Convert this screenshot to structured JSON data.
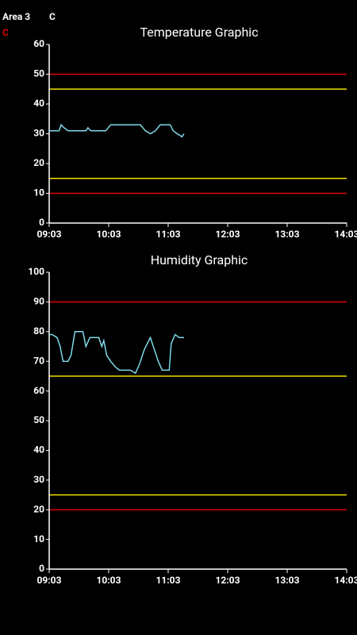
{
  "header": {
    "area": "Area 3",
    "unit": "C",
    "status": "C"
  },
  "chart_data": [
    {
      "type": "line",
      "title": "Temperature Graphic",
      "x": [
        "09:03",
        "09:13",
        "09:15",
        "09:18",
        "09:22",
        "09:40",
        "09:42",
        "09:45",
        "10:00",
        "10:05",
        "10:35",
        "10:40",
        "10:45",
        "10:50",
        "10:55",
        "11:05",
        "11:08",
        "11:12",
        "11:17",
        "11:19"
      ],
      "series": [
        {
          "color": "#7fd8e8",
          "values": [
            31,
            31,
            33,
            32,
            31,
            31,
            32,
            31,
            31,
            33,
            33,
            31,
            30,
            31,
            33,
            33,
            31,
            30,
            29,
            30
          ]
        }
      ],
      "xlim": [
        "09:03",
        "14:03"
      ],
      "xticks": [
        "09:03",
        "10:03",
        "11:03",
        "12:03",
        "13:03",
        "14:03"
      ],
      "ylim": [
        0,
        60
      ],
      "yticks": [
        0,
        10,
        20,
        30,
        40,
        50,
        60
      ],
      "reference_lines": [
        {
          "value": 50,
          "color": "#e00000"
        },
        {
          "value": 45,
          "color": "#f0e000"
        },
        {
          "value": 15,
          "color": "#f0e000"
        },
        {
          "value": 10,
          "color": "#e00000"
        }
      ]
    },
    {
      "type": "line",
      "title": "Humidity Graphic",
      "x": [
        "09:03",
        "09:06",
        "09:11",
        "09:14",
        "09:17",
        "09:22",
        "09:25",
        "09:29",
        "09:37",
        "09:40",
        "09:44",
        "09:53",
        "09:56",
        "09:58",
        "10:01",
        "10:05",
        "10:10",
        "10:14",
        "10:25",
        "10:30",
        "10:34",
        "10:39",
        "10:45",
        "10:49",
        "10:53",
        "10:57",
        "11:04",
        "11:06",
        "11:10",
        "11:14",
        "11:19"
      ],
      "series": [
        {
          "color": "#7fd8e8",
          "values": [
            79,
            79,
            78,
            75,
            70,
            70,
            72,
            80,
            80,
            75,
            78,
            78,
            75,
            77,
            72,
            70,
            68,
            67,
            67,
            66,
            69,
            74,
            78,
            74,
            70,
            67,
            67,
            76,
            79,
            78,
            78
          ]
        }
      ],
      "xlim": [
        "09:03",
        "14:03"
      ],
      "xticks": [
        "09:03",
        "10:03",
        "11:03",
        "12:03",
        "13:03",
        "14:03"
      ],
      "ylim": [
        0,
        100
      ],
      "yticks": [
        0,
        10,
        20,
        30,
        40,
        50,
        60,
        70,
        80,
        90,
        100
      ],
      "reference_lines": [
        {
          "value": 90,
          "color": "#e00000"
        },
        {
          "value": 65,
          "color": "#f0e000"
        },
        {
          "value": 25,
          "color": "#f0e000"
        },
        {
          "value": 20,
          "color": "#e00000"
        }
      ]
    }
  ]
}
